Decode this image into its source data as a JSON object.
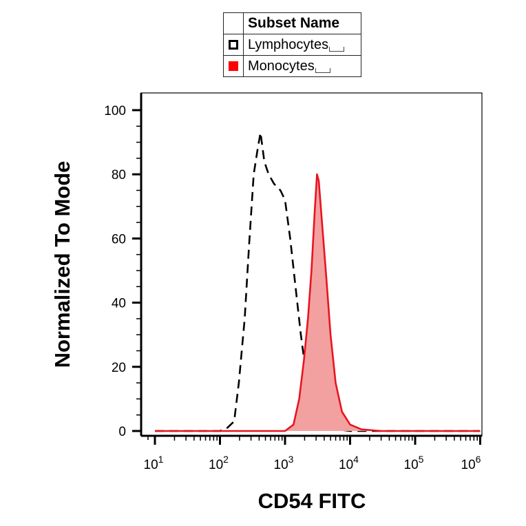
{
  "legend": {
    "header": "Subset Name",
    "items": [
      {
        "label": "Lymphocytes",
        "swatch": "open",
        "color": "#000000"
      },
      {
        "label": "Monocytes",
        "swatch": "filled",
        "color": "#ff0000"
      }
    ]
  },
  "chart_data": {
    "type": "area",
    "xlabel": "CD54 FITC",
    "ylabel": "Normalized To Mode",
    "x_scale": "log",
    "xlim": [
      0,
      1000000
    ],
    "ylim": [
      0,
      100
    ],
    "yticks": [
      0,
      20,
      40,
      60,
      80,
      100
    ],
    "xticks": [
      {
        "base": "10",
        "exp": "1",
        "value": 10
      },
      {
        "base": "10",
        "exp": "2",
        "value": 100
      },
      {
        "base": "10",
        "exp": "3",
        "value": 1000
      },
      {
        "base": "10",
        "exp": "4",
        "value": 10000
      },
      {
        "base": "10",
        "exp": "5",
        "value": 100000
      },
      {
        "base": "10",
        "exp": "6",
        "value": 1000000
      }
    ],
    "grid": false,
    "legend_position": "top-center",
    "series": [
      {
        "name": "Lymphocytes",
        "style": "dashed",
        "color": "#000000",
        "fill": false,
        "points": [
          [
            10,
            0
          ],
          [
            100,
            0
          ],
          [
            130,
            1
          ],
          [
            165,
            3
          ],
          [
            195,
            15
          ],
          [
            240,
            35
          ],
          [
            280,
            58
          ],
          [
            330,
            80
          ],
          [
            380,
            88
          ],
          [
            420,
            93
          ],
          [
            480,
            84
          ],
          [
            560,
            80
          ],
          [
            680,
            77
          ],
          [
            850,
            75
          ],
          [
            1000,
            72
          ],
          [
            1200,
            60
          ],
          [
            1450,
            45
          ],
          [
            1750,
            30
          ],
          [
            2100,
            18
          ],
          [
            2600,
            10
          ],
          [
            3300,
            5
          ],
          [
            4500,
            2
          ],
          [
            6500,
            0.5
          ],
          [
            10000,
            0
          ],
          [
            1000000,
            0
          ]
        ]
      },
      {
        "name": "Monocytes",
        "style": "solid",
        "color": "#e8141f",
        "fill": true,
        "fill_color": "#f3a0a0",
        "points": [
          [
            10,
            0
          ],
          [
            1000,
            0
          ],
          [
            1350,
            2
          ],
          [
            1650,
            10
          ],
          [
            1950,
            22
          ],
          [
            2250,
            35
          ],
          [
            2550,
            50
          ],
          [
            2850,
            68
          ],
          [
            3100,
            80
          ],
          [
            3300,
            78
          ],
          [
            3700,
            65
          ],
          [
            4300,
            48
          ],
          [
            5000,
            30
          ],
          [
            6000,
            15
          ],
          [
            7500,
            6
          ],
          [
            10000,
            2
          ],
          [
            15000,
            0.5
          ],
          [
            30000,
            0
          ],
          [
            1000000,
            0
          ]
        ]
      }
    ]
  }
}
